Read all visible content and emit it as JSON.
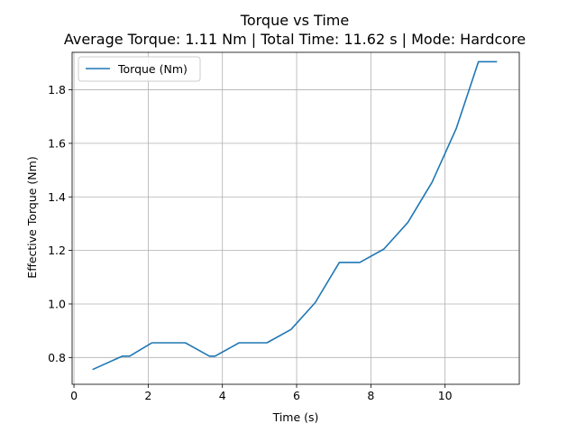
{
  "chart_data": {
    "type": "line",
    "title": "Torque vs Time",
    "subtitle": "Average Torque: 1.11 Nm | Total Time: 11.62 s | Mode: Hardcore",
    "xlabel": "Time (s)",
    "ylabel": "Effective Torque (Nm)",
    "xlim": [
      -0.05,
      12.0
    ],
    "ylim": [
      0.7,
      1.94
    ],
    "xticks": [
      0,
      2,
      4,
      6,
      8,
      10
    ],
    "xtick_labels": [
      "0",
      "2",
      "4",
      "6",
      "8",
      "10"
    ],
    "yticks": [
      0.8,
      1.0,
      1.2,
      1.4,
      1.6,
      1.8
    ],
    "ytick_labels": [
      "0.8",
      "1.0",
      "1.2",
      "1.4",
      "1.6",
      "1.8"
    ],
    "grid": true,
    "legend": {
      "position": "top-left"
    },
    "series": [
      {
        "name": "Torque (Nm)",
        "color": "#1f77b4",
        "x": [
          0.5,
          1.3,
          1.5,
          2.1,
          3.0,
          3.65,
          3.8,
          4.45,
          5.2,
          5.85,
          6.5,
          7.15,
          7.7,
          8.35,
          9.0,
          9.65,
          10.3,
          10.9,
          11.4
        ],
        "y": [
          0.755,
          0.805,
          0.805,
          0.855,
          0.855,
          0.805,
          0.805,
          0.855,
          0.855,
          0.905,
          1.005,
          1.155,
          1.155,
          1.205,
          1.305,
          1.455,
          1.655,
          1.905,
          1.905
        ]
      }
    ]
  }
}
